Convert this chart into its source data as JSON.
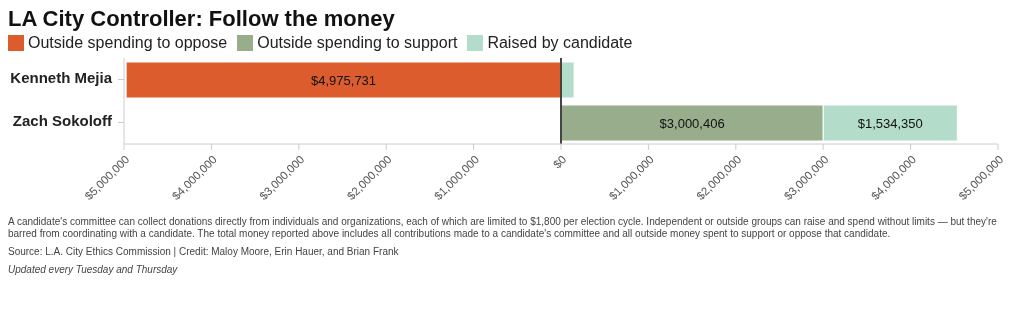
{
  "chart_data": {
    "type": "bar",
    "orientation": "horizontal",
    "title": "LA City Controller: Follow the money",
    "categories": [
      "Kenneth Mejia",
      "Zach Sokoloff"
    ],
    "series": [
      {
        "name": "Outside spending to oppose",
        "color": "#dc5c2e",
        "values": [
          4975731,
          null
        ],
        "base": [
          -4975731,
          null
        ],
        "value_labels": [
          "$4,975,731",
          null
        ]
      },
      {
        "name": "Outside spending to support",
        "color": "#98ad8c",
        "values": [
          null,
          3000406
        ],
        "base": [
          null,
          0
        ],
        "value_labels": [
          null,
          "$3,000,406"
        ]
      },
      {
        "name": "Raised by candidate",
        "color": "#b4dccb",
        "values": [
          150000,
          1534350
        ],
        "base": [
          0,
          3000406
        ],
        "value_labels": [
          null,
          "$1,534,350"
        ]
      }
    ],
    "xlim": [
      -5000000,
      5000000
    ],
    "xticks": [
      {
        "value": -5000000,
        "label": "$5,000,000"
      },
      {
        "value": -4000000,
        "label": "$4,000,000"
      },
      {
        "value": -3000000,
        "label": "$3,000,000"
      },
      {
        "value": -2000000,
        "label": "$2,000,000"
      },
      {
        "value": -1000000,
        "label": "$1,000,000"
      },
      {
        "value": 0,
        "label": "$0"
      },
      {
        "value": 1000000,
        "label": "$1,000,000"
      },
      {
        "value": 2000000,
        "label": "$2,000,000"
      },
      {
        "value": 3000000,
        "label": "$3,000,000"
      },
      {
        "value": 4000000,
        "label": "$4,000,000"
      },
      {
        "value": 5000000,
        "label": "$5,000,000"
      }
    ],
    "ref_lines": [
      {
        "axis": "x",
        "value": 0,
        "color": "#444444"
      }
    ],
    "legend": "top left",
    "annotations": [
      "A candidate's committee can collect donations directly from individuals and organizations, each of which are limited to $1,800 per election cycle. Independent or outside groups can raise and spend without limits — but they're barred from coordinating with a candidate. The total money reported above includes all contributions made to a candidate's committee and all outside money spent to support or oppose that candidate.",
      "Source: L.A. City Ethics Commission | Credit: Maloy Moore, Erin Hauer, and Brian Frank",
      "Updated every Tuesday and Thursday"
    ]
  }
}
